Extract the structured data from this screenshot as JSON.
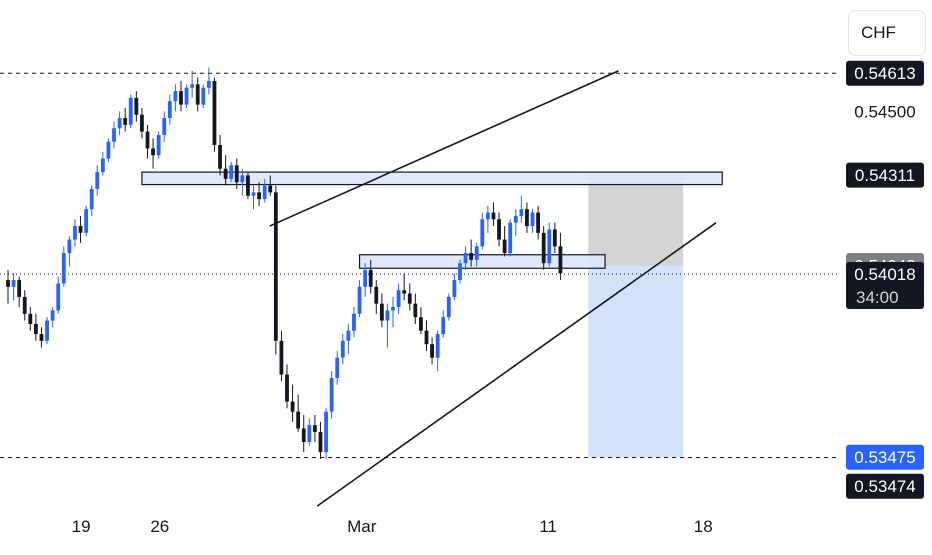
{
  "currency": "CHF",
  "colors": {
    "up": "#2962ff",
    "down": "#131722",
    "zone_fill": "#dbe7fb",
    "stop_fill": "#b8b8b8",
    "target_fill": "#9dbcf5",
    "price_label_bg": "#131722",
    "current_price_bg": "#7d7e82",
    "target_label_bg": "#2962ff"
  },
  "price_labels": {
    "high_line": "0.54613",
    "level_2": "0.54500",
    "resistance": "0.54311",
    "current_price": "0.54043",
    "last_close": "0.54018",
    "countdown": "34:00",
    "target": "0.53475",
    "low_line": "0.53474"
  },
  "chart_data": {
    "type": "candlestick",
    "x_tick_labels": [
      "19",
      "26",
      "Mar",
      "11",
      "18"
    ],
    "y_range": [
      0.532,
      0.5483
    ],
    "candle_start_index": 0,
    "candles": [
      [
        0.54,
        0.5403,
        0.5393,
        0.5398
      ],
      [
        0.5398,
        0.5402,
        0.5394,
        0.54
      ],
      [
        0.54,
        0.5401,
        0.5392,
        0.5395
      ],
      [
        0.5395,
        0.5397,
        0.5388,
        0.539
      ],
      [
        0.539,
        0.5392,
        0.5385,
        0.5387
      ],
      [
        0.5387,
        0.539,
        0.5382,
        0.5384
      ],
      [
        0.5384,
        0.5386,
        0.538,
        0.5382
      ],
      [
        0.5382,
        0.5389,
        0.5381,
        0.5388
      ],
      [
        0.5388,
        0.5392,
        0.5386,
        0.5391
      ],
      [
        0.5391,
        0.5401,
        0.539,
        0.5399
      ],
      [
        0.5399,
        0.541,
        0.5398,
        0.5408
      ],
      [
        0.5408,
        0.5413,
        0.5404,
        0.5412
      ],
      [
        0.5412,
        0.5418,
        0.541,
        0.5416
      ],
      [
        0.5416,
        0.5419,
        0.5411,
        0.5414
      ],
      [
        0.5414,
        0.5422,
        0.5413,
        0.5421
      ],
      [
        0.5421,
        0.5428,
        0.5419,
        0.5427
      ],
      [
        0.5427,
        0.5434,
        0.5425,
        0.5432
      ],
      [
        0.5432,
        0.5438,
        0.5431,
        0.5436
      ],
      [
        0.5436,
        0.5442,
        0.5435,
        0.5441
      ],
      [
        0.5441,
        0.5447,
        0.5439,
        0.5445
      ],
      [
        0.5445,
        0.545,
        0.5443,
        0.5448
      ],
      [
        0.5448,
        0.5451,
        0.5444,
        0.5446
      ],
      [
        0.5446,
        0.5455,
        0.5445,
        0.5454
      ],
      [
        0.5454,
        0.5456,
        0.5447,
        0.5449
      ],
      [
        0.5449,
        0.5451,
        0.5442,
        0.5444
      ],
      [
        0.5444,
        0.5446,
        0.5436,
        0.5439
      ],
      [
        0.5439,
        0.5442,
        0.5433,
        0.5437
      ],
      [
        0.5437,
        0.5444,
        0.5436,
        0.5443
      ],
      [
        0.5443,
        0.545,
        0.5441,
        0.5448
      ],
      [
        0.5448,
        0.5455,
        0.5446,
        0.5453
      ],
      [
        0.5453,
        0.5458,
        0.545,
        0.5456
      ],
      [
        0.5456,
        0.5459,
        0.545,
        0.5452
      ],
      [
        0.5452,
        0.5458,
        0.5451,
        0.5457
      ],
      [
        0.5457,
        0.5462,
        0.5454,
        0.5458
      ],
      [
        0.5458,
        0.546,
        0.545,
        0.5452
      ],
      [
        0.5452,
        0.5458,
        0.5451,
        0.5457
      ],
      [
        0.5457,
        0.5463,
        0.5455,
        0.5459
      ],
      [
        0.5459,
        0.546,
        0.5438,
        0.544
      ],
      [
        0.544,
        0.5443,
        0.5431,
        0.5433
      ],
      [
        0.5433,
        0.5437,
        0.5428,
        0.543
      ],
      [
        0.543,
        0.5435,
        0.5429,
        0.5434
      ],
      [
        0.5434,
        0.5436,
        0.5427,
        0.5429
      ],
      [
        0.5429,
        0.5433,
        0.5425,
        0.5431
      ],
      [
        0.5431,
        0.5432,
        0.5424,
        0.5425
      ],
      [
        0.5425,
        0.5428,
        0.5421,
        0.5426
      ],
      [
        0.5426,
        0.5429,
        0.5422,
        0.5424
      ],
      [
        0.5424,
        0.543,
        0.5423,
        0.5428
      ],
      [
        0.5428,
        0.5431,
        0.5425,
        0.5426
      ],
      [
        0.5426,
        0.5428,
        0.5378,
        0.5382
      ],
      [
        0.5382,
        0.5385,
        0.537,
        0.5372
      ],
      [
        0.5372,
        0.5375,
        0.5362,
        0.5364
      ],
      [
        0.5364,
        0.5369,
        0.5358,
        0.5361
      ],
      [
        0.5361,
        0.5366,
        0.5355,
        0.5356
      ],
      [
        0.5356,
        0.536,
        0.5349,
        0.5352
      ],
      [
        0.5352,
        0.5359,
        0.5351,
        0.5357
      ],
      [
        0.5357,
        0.536,
        0.5352,
        0.5355
      ],
      [
        0.5355,
        0.5358,
        0.5347,
        0.5349
      ],
      [
        0.5349,
        0.5362,
        0.5347,
        0.5361
      ],
      [
        0.5361,
        0.5373,
        0.5359,
        0.5371
      ],
      [
        0.5371,
        0.5379,
        0.5369,
        0.5377
      ],
      [
        0.5377,
        0.5384,
        0.5375,
        0.5382
      ],
      [
        0.5382,
        0.5387,
        0.5378,
        0.5385
      ],
      [
        0.5385,
        0.5392,
        0.5383,
        0.539
      ],
      [
        0.539,
        0.54,
        0.5389,
        0.5398
      ],
      [
        0.5398,
        0.5405,
        0.5395,
        0.5403
      ],
      [
        0.5403,
        0.5406,
        0.5396,
        0.5398
      ],
      [
        0.5398,
        0.54,
        0.539,
        0.5393
      ],
      [
        0.5393,
        0.5396,
        0.5386,
        0.5388
      ],
      [
        0.5388,
        0.5393,
        0.538,
        0.5391
      ],
      [
        0.5391,
        0.5395,
        0.5386,
        0.5392
      ],
      [
        0.5392,
        0.5399,
        0.539,
        0.5397
      ],
      [
        0.5397,
        0.5402,
        0.5394,
        0.5396
      ],
      [
        0.5396,
        0.5399,
        0.5391,
        0.5393
      ],
      [
        0.5393,
        0.5396,
        0.5387,
        0.5389
      ],
      [
        0.5389,
        0.5392,
        0.5384,
        0.5385
      ],
      [
        0.5385,
        0.5388,
        0.5379,
        0.5381
      ],
      [
        0.5381,
        0.5383,
        0.5375,
        0.5377
      ],
      [
        0.5377,
        0.5385,
        0.5373,
        0.5384
      ],
      [
        0.5384,
        0.5391,
        0.5383,
        0.5389
      ],
      [
        0.5389,
        0.5396,
        0.5388,
        0.5395
      ],
      [
        0.5395,
        0.5402,
        0.5394,
        0.54
      ],
      [
        0.54,
        0.5406,
        0.5399,
        0.5405
      ],
      [
        0.5405,
        0.541,
        0.5403,
        0.5408
      ],
      [
        0.5408,
        0.5412,
        0.5404,
        0.5406
      ],
      [
        0.5406,
        0.5411,
        0.5404,
        0.541
      ],
      [
        0.541,
        0.542,
        0.5409,
        0.5418
      ],
      [
        0.5418,
        0.5422,
        0.5414,
        0.542
      ],
      [
        0.542,
        0.5423,
        0.5416,
        0.5418
      ],
      [
        0.5418,
        0.542,
        0.541,
        0.5412
      ],
      [
        0.5412,
        0.5416,
        0.5407,
        0.5408
      ],
      [
        0.5408,
        0.5418,
        0.5407,
        0.5417
      ],
      [
        0.5417,
        0.5421,
        0.5413,
        0.5419
      ],
      [
        0.5419,
        0.5425,
        0.5417,
        0.5421
      ],
      [
        0.5421,
        0.5423,
        0.5414,
        0.5416
      ],
      [
        0.5416,
        0.5421,
        0.5414,
        0.542
      ],
      [
        0.542,
        0.5422,
        0.5412,
        0.5414
      ],
      [
        0.5414,
        0.5416,
        0.5403,
        0.5405
      ],
      [
        0.5405,
        0.5417,
        0.5404,
        0.5415
      ],
      [
        0.5415,
        0.5417,
        0.5408,
        0.541
      ],
      [
        0.541,
        0.5414,
        0.54,
        0.5402
      ]
    ],
    "levels": {
      "high_dashed": 0.54613,
      "low_dashed": 0.53474,
      "last_close_dotted": 0.54018
    },
    "zones": [
      {
        "name": "upper",
        "top": 0.5432,
        "bottom": 0.54283,
        "start_index": 24,
        "end_index": 128
      },
      {
        "name": "lower",
        "top": 0.54075,
        "bottom": 0.54035,
        "start_index": 63,
        "end_index": 107
      }
    ],
    "channel": {
      "upper_line": {
        "start": [
          46.9,
          0.5416
        ],
        "end": [
          109.4,
          0.5462
        ]
      },
      "lower_line": {
        "start": [
          55.4,
          0.5333
        ],
        "end": [
          126.9,
          0.5417
        ]
      }
    },
    "position": {
      "start_index": 104,
      "end_index": 121,
      "entry": 0.54043,
      "stop": 0.54311,
      "target": 0.53475
    }
  }
}
